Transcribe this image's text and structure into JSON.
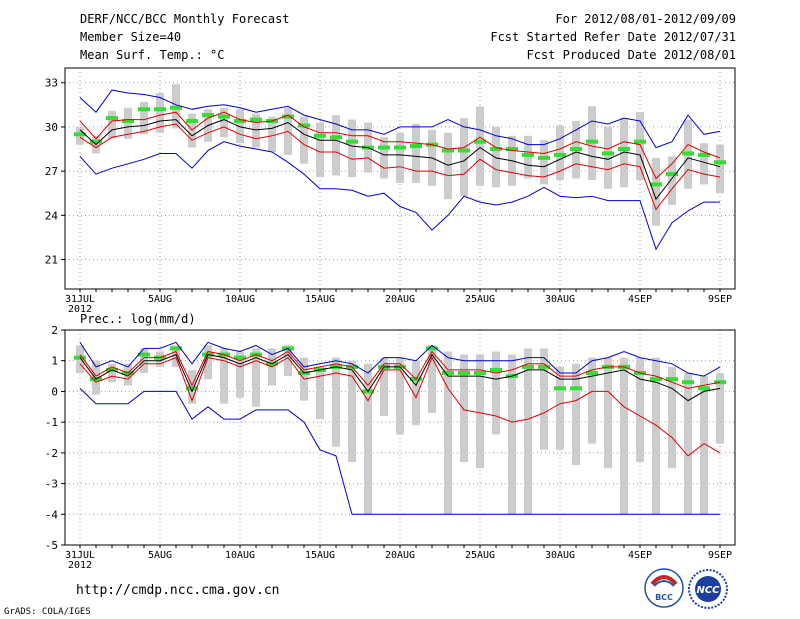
{
  "header": {
    "title": "DERF/NCC/BCC Monthly Forecast",
    "member_size": "Member Size=40",
    "variable": "Mean Surf. Temp.: °C",
    "period": "For 2012/08/01-2012/09/09",
    "start_date": "Fcst Started Refer Date 2012/07/31",
    "produced_date": "Fcst Produced Date 2012/08/01"
  },
  "footer": {
    "url": "http://cmdp.ncc.cma.gov.cn",
    "credit": "GrADS: COLA/IGES",
    "logo_left_text": "BCC",
    "logo_right_text": "NCC"
  },
  "colors": {
    "max_min": "#0000cc",
    "spread": "#e00000",
    "mean": "#000000",
    "median": "#33dd33",
    "box": "#cccccc",
    "grid": "#999999"
  },
  "chart_data": [
    {
      "type": "line",
      "name": "temperature",
      "ylabel": "Mean Surf. Temp.: °C",
      "ylim": [
        19,
        34
      ],
      "yticks": [
        21,
        24,
        27,
        30,
        33
      ],
      "x": [
        0,
        1,
        2,
        3,
        4,
        5,
        6,
        7,
        8,
        9,
        10,
        11,
        12,
        13,
        14,
        15,
        16,
        17,
        18,
        19,
        20,
        21,
        22,
        23,
        24,
        25,
        26,
        27,
        28,
        29,
        30,
        31,
        32,
        33,
        34,
        35,
        36,
        37,
        38,
        39,
        40
      ],
      "xticks": [
        {
          "x": 0,
          "label": "31JUL",
          "year": "2012"
        },
        {
          "x": 5,
          "label": "5AUG"
        },
        {
          "x": 10,
          "label": "10AUG"
        },
        {
          "x": 15,
          "label": "15AUG"
        },
        {
          "x": 20,
          "label": "20AUG"
        },
        {
          "x": 25,
          "label": "25AUG"
        },
        {
          "x": 30,
          "label": "30AUG"
        },
        {
          "x": 35,
          "label": "4SEP"
        },
        {
          "x": 40,
          "label": "9SEP"
        }
      ],
      "series": [
        {
          "name": "max",
          "values": [
            32,
            31,
            32.5,
            32.3,
            32.2,
            32,
            31.5,
            31.2,
            31.4,
            31.5,
            31.3,
            31,
            31.2,
            31.4,
            30.8,
            30.5,
            30.2,
            29.8,
            29.8,
            29.5,
            30,
            30,
            30,
            30.5,
            30,
            29.8,
            29.4,
            29.2,
            28.8,
            28.8,
            29.2,
            29.8,
            30.4,
            30.2,
            30.6,
            30.4,
            28.6,
            29,
            30.8,
            29.5,
            29.7
          ]
        },
        {
          "name": "upper",
          "values": [
            30.4,
            29.2,
            30.4,
            30.5,
            30.5,
            30.8,
            31,
            29.8,
            30.6,
            31,
            30.5,
            30.3,
            30.4,
            30.8,
            30,
            29.6,
            29.6,
            29.4,
            29.4,
            29,
            29,
            28.9,
            28.8,
            28.5,
            28.6,
            29.3,
            28.6,
            28.4,
            28.3,
            28.2,
            28.5,
            29,
            28.7,
            28.5,
            29,
            28.8,
            26.5,
            27.5,
            28.8,
            28.3,
            27.9
          ]
        },
        {
          "name": "mean",
          "values": [
            29.8,
            28.8,
            29.8,
            30,
            30.1,
            30.4,
            30.5,
            29.4,
            30.1,
            30.5,
            30,
            29.8,
            29.9,
            30.3,
            29.5,
            29.1,
            29.1,
            28.7,
            28.6,
            28.1,
            28.1,
            28,
            27.9,
            27.4,
            27.7,
            28.6,
            27.9,
            27.7,
            27.4,
            27.3,
            27.8,
            28.3,
            28,
            27.8,
            28.3,
            28.1,
            25.1,
            26.5,
            27.9,
            27.6,
            27.3
          ]
        },
        {
          "name": "lower",
          "values": [
            29.3,
            28.6,
            29.3,
            29.5,
            29.7,
            30,
            30.2,
            29.1,
            29.6,
            30,
            29.5,
            29.2,
            29.4,
            29.7,
            28.8,
            28.3,
            28.3,
            27.8,
            27.9,
            27.2,
            27.3,
            27,
            27,
            26.7,
            26.8,
            27.8,
            27.1,
            26.9,
            26.7,
            26.6,
            27,
            27.5,
            27.3,
            27.1,
            27.5,
            27.3,
            24.4,
            25.8,
            27.1,
            26.8,
            26.6
          ]
        },
        {
          "name": "min",
          "values": [
            28,
            26.8,
            27.2,
            27.5,
            27.8,
            28.2,
            28.2,
            27.2,
            28.4,
            29,
            28.7,
            28.5,
            28.3,
            27.6,
            26.8,
            25.8,
            25.8,
            25.7,
            25.3,
            25.5,
            24.6,
            24.2,
            23,
            24,
            25.3,
            24.9,
            24.7,
            24.9,
            25.3,
            25.9,
            25.3,
            25.2,
            25.3,
            25,
            25,
            25,
            21.7,
            23.5,
            24.3,
            24.9,
            24.9
          ]
        },
        {
          "name": "median",
          "values": [
            29.5,
            29,
            30.6,
            30.4,
            31.2,
            31.2,
            31.3,
            30.4,
            30.8,
            30.7,
            30.4,
            30.5,
            30.4,
            30.7,
            30.1,
            29.4,
            29.3,
            29,
            28.6,
            28.6,
            28.6,
            28.7,
            28.8,
            28.4,
            28.4,
            29,
            28.5,
            28.5,
            28.1,
            27.9,
            28.1,
            28.5,
            29,
            28.2,
            28.5,
            29,
            26.1,
            26.8,
            28.2,
            28.1,
            27.6
          ]
        },
        {
          "name": "box_high",
          "values": [
            30,
            29.4,
            31.1,
            31.3,
            31.7,
            32.3,
            32.9,
            30.9,
            31.2,
            31.3,
            31.2,
            30.9,
            30.7,
            31.3,
            30.7,
            30.3,
            30.8,
            30.5,
            30.3,
            29.3,
            29.6,
            30.2,
            29.8,
            29.6,
            30.6,
            31.4,
            30,
            29.4,
            29.4,
            29.1,
            30.1,
            30.4,
            31.4,
            30,
            30.6,
            31,
            27.9,
            28,
            30.5,
            28.9,
            28.8
          ]
        },
        {
          "name": "box_low",
          "values": [
            28.8,
            28.2,
            29.2,
            29.2,
            29.5,
            29.6,
            29.9,
            28.6,
            29,
            29.3,
            28.9,
            28.6,
            28.3,
            28.1,
            27.5,
            26.6,
            26.7,
            26.6,
            26.9,
            26.5,
            26.2,
            26.2,
            26,
            25.1,
            25.3,
            26,
            25.9,
            26,
            26.5,
            26.1,
            26.4,
            26.5,
            26.4,
            25.8,
            25.9,
            26.4,
            23.3,
            24.7,
            25.8,
            26.1,
            25.5
          ]
        }
      ]
    },
    {
      "type": "line",
      "name": "precipitation",
      "ylabel": "Prec.: log(mm/d)",
      "ylim": [
        -5,
        2
      ],
      "yticks": [
        -5,
        -4,
        -3,
        -2,
        -1,
        0,
        1,
        2
      ],
      "x": [
        0,
        1,
        2,
        3,
        4,
        5,
        6,
        7,
        8,
        9,
        10,
        11,
        12,
        13,
        14,
        15,
        16,
        17,
        18,
        19,
        20,
        21,
        22,
        23,
        24,
        25,
        26,
        27,
        28,
        29,
        30,
        31,
        32,
        33,
        34,
        35,
        36,
        37,
        38,
        39,
        40
      ],
      "xticks": [
        {
          "x": 0,
          "label": "31JUL",
          "year": "2012"
        },
        {
          "x": 5,
          "label": "5AUG"
        },
        {
          "x": 10,
          "label": "10AUG"
        },
        {
          "x": 15,
          "label": "15AUG"
        },
        {
          "x": 20,
          "label": "20AUG"
        },
        {
          "x": 25,
          "label": "25AUG"
        },
        {
          "x": 30,
          "label": "30AUG"
        },
        {
          "x": 35,
          "label": "4SEP"
        },
        {
          "x": 40,
          "label": "9SEP"
        }
      ],
      "series": [
        {
          "name": "max",
          "values": [
            1.6,
            0.8,
            1,
            0.8,
            1.4,
            1.4,
            1.6,
            0.9,
            1.6,
            1.4,
            1.3,
            1.5,
            1.2,
            1.4,
            0.8,
            0.9,
            1,
            0.9,
            0.6,
            1.1,
            1.1,
            1,
            1.5,
            1.1,
            1,
            1,
            1,
            1,
            1.1,
            1.1,
            0.6,
            0.6,
            1,
            1.1,
            1.3,
            1.1,
            1,
            0.9,
            0.6,
            0.5,
            0.8
          ]
        },
        {
          "name": "upper",
          "values": [
            1.2,
            0.5,
            0.8,
            0.6,
            1.1,
            1.1,
            1.3,
            0.2,
            1.3,
            1.2,
            1,
            1.2,
            1,
            1.3,
            0.7,
            0.8,
            0.9,
            0.8,
            0.2,
            0.9,
            0.9,
            0.4,
            1.3,
            0.7,
            0.7,
            0.7,
            0.6,
            0.7,
            0.9,
            0.9,
            0.5,
            0.5,
            0.7,
            0.8,
            0.8,
            0.6,
            0.5,
            0.3,
            0.1,
            0.2,
            0.3
          ]
        },
        {
          "name": "mean",
          "values": [
            1.1,
            0.4,
            0.7,
            0.5,
            1,
            1,
            1.2,
            0,
            1.2,
            1.1,
            0.9,
            1.1,
            0.9,
            1.2,
            0.6,
            0.7,
            0.8,
            0.7,
            0,
            0.8,
            0.8,
            0.2,
            1.2,
            0.5,
            0.5,
            0.5,
            0.4,
            0.5,
            0.7,
            0.7,
            0.4,
            0.4,
            0.5,
            0.6,
            0.7,
            0.4,
            0.3,
            0.1,
            -0.3,
            0,
            0.1
          ]
        },
        {
          "name": "lower",
          "values": [
            0.9,
            0.3,
            0.5,
            0.4,
            0.9,
            0.9,
            1.1,
            -0.3,
            1.1,
            1,
            0.8,
            1,
            0.8,
            1.1,
            0.4,
            0.5,
            0.6,
            0.5,
            -0.3,
            0.7,
            0.7,
            -0.2,
            1.1,
            0.1,
            -0.6,
            -0.7,
            -0.8,
            -1,
            -0.9,
            -0.7,
            -0.4,
            -0.3,
            0,
            0,
            -0.5,
            -0.8,
            -1.1,
            -1.5,
            -2.1,
            -1.7,
            -2
          ]
        },
        {
          "name": "min",
          "values": [
            0.1,
            -0.4,
            -0.4,
            -0.4,
            0,
            0,
            0,
            -0.9,
            -0.5,
            -0.9,
            -0.9,
            -0.6,
            -0.6,
            -0.6,
            -1,
            -1.9,
            -2.1,
            -4,
            -4,
            -4,
            -4,
            -4,
            -4,
            -4,
            -4,
            -4,
            -4,
            -4,
            -4,
            -4,
            -4,
            -4,
            -4,
            -4,
            -4,
            -4,
            -4,
            -4,
            -4,
            -4,
            -4
          ]
        },
        {
          "name": "median",
          "values": [
            1.1,
            0.4,
            0.7,
            0.6,
            1.2,
            1.1,
            1.4,
            0.1,
            1.2,
            1.2,
            1.1,
            1.2,
            0.9,
            1.4,
            0.6,
            0.7,
            0.8,
            0.8,
            0,
            0.8,
            0.8,
            0.4,
            1.4,
            0.6,
            0.6,
            0.6,
            0.7,
            0.5,
            0.8,
            0.8,
            0.1,
            0.1,
            0.6,
            0.8,
            0.8,
            0.6,
            0.4,
            0.4,
            0.3,
            0.1,
            0.3
          ]
        },
        {
          "name": "box_high",
          "values": [
            1.5,
            1,
            0.9,
            0.9,
            1.4,
            1.3,
            1.5,
            0.7,
            1.5,
            1.4,
            1.3,
            1.4,
            1.4,
            1.5,
            1.1,
            0.8,
            1.1,
            1,
            0.9,
            1.1,
            1.1,
            1,
            1.5,
            1.3,
            1.2,
            1.2,
            1.3,
            1.2,
            1.4,
            1.4,
            0.8,
            0.9,
            1.1,
            1.1,
            1.1,
            1.1,
            1.1,
            0.8,
            0.6,
            0.5,
            0.6
          ]
        },
        {
          "name": "box_low",
          "values": [
            0.6,
            -0.1,
            0.3,
            0.2,
            0.6,
            0.8,
            0.8,
            -0.4,
            0.4,
            -0.4,
            -0.2,
            -0.5,
            0.2,
            0.5,
            -0.3,
            -0.9,
            -1.8,
            -2.3,
            -4,
            -0.8,
            -1.4,
            -1.1,
            -0.7,
            -4,
            -2.3,
            -2.5,
            -1.4,
            -4,
            -4,
            -1.9,
            -1.9,
            -2.4,
            -1.7,
            -2.5,
            -4,
            -2.3,
            -4,
            -2.5,
            -4,
            -4,
            -1.7
          ]
        }
      ]
    }
  ]
}
